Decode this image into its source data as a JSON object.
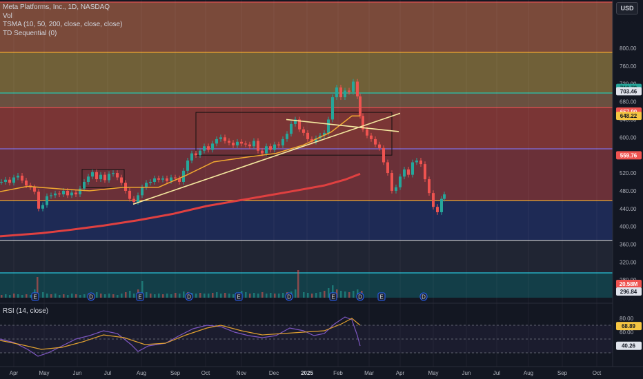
{
  "legend": {
    "symbol": "Meta Platforms, Inc., 1D, NASDAQ",
    "volume": "Vol",
    "tsma": "TSMA (10, 50, 200, close, close, close)",
    "td": "TD Sequential (0)"
  },
  "rsi_title": "RSI (14, close)",
  "currency_button": "USD",
  "colors": {
    "background": "#131722",
    "grid": "#1f2430",
    "candle_up": "#26a69a",
    "candle_down": "#ef5350",
    "sma10": "#26a69a",
    "sma50": "#f0a830",
    "sma200": "#e04040",
    "trendline": "#f5e9a0",
    "rsi": "#7e57c2",
    "rsi_ma": "#e0a030"
  },
  "price_axis": [
    "800.00",
    "760.00",
    "720.00",
    "680.00",
    "640.00",
    "600.00",
    "560.00",
    "520.00",
    "480.00",
    "440.00",
    "400.00",
    "360.00",
    "320.00",
    "280.00"
  ],
  "price_badges": [
    {
      "text": "710.79",
      "kind": "green"
    },
    {
      "text": "703.46",
      "kind": "white"
    },
    {
      "text": "657.90",
      "kind": "red"
    },
    {
      "text": "648.22",
      "kind": "yellow"
    },
    {
      "text": "559.76",
      "kind": "red"
    },
    {
      "text": "20.58M",
      "kind": "red"
    },
    {
      "text": "296.84",
      "kind": "white"
    }
  ],
  "rsi_axis": [
    "80.00",
    "60.00"
  ],
  "rsi_badges": [
    {
      "text": "68.89",
      "kind": "yellow"
    },
    {
      "text": "40.26",
      "kind": "white"
    }
  ],
  "time_axis": [
    "Apr",
    "May",
    "Jun",
    "Jul",
    "Aug",
    "Sep",
    "Oct",
    "Nov",
    "Dec",
    "2025",
    "Feb",
    "Mar",
    "Apr",
    "May",
    "Jun",
    "Jul",
    "Aug",
    "Sep",
    "Oct"
  ],
  "event_markers": [
    "E",
    "D",
    "E",
    "D",
    "E",
    "D",
    "E",
    "D",
    "E",
    "D"
  ],
  "zones": [
    {
      "top": 3,
      "bottom": 76,
      "color": "#7a4a3a",
      "line": "#e05050"
    },
    {
      "top": 76,
      "bottom": 135,
      "color": "#706038",
      "line": "#f0a830"
    },
    {
      "top": 135,
      "bottom": 156,
      "color": "#6a5040",
      "line": "#26c6b0"
    },
    {
      "top": 156,
      "bottom": 216,
      "color": "#7a3535",
      "line": "#e05050"
    },
    {
      "top": 216,
      "bottom": 291,
      "color": "#6a3038",
      "line": "#7e6ee0"
    },
    {
      "top": 291,
      "bottom": 349,
      "color": "#1e2a55",
      "line": "#f0a830"
    },
    {
      "top": 349,
      "bottom": 396,
      "color": "#202533",
      "line": "#c0c0c0"
    },
    {
      "top": 396,
      "bottom": 432,
      "color": "#133e48",
      "line": "#26c6da"
    }
  ],
  "chart_data": {
    "type": "candlestick",
    "y_range": [
      268,
      868
    ],
    "rsi_range": [
      20,
      90
    ],
    "rsi_levels": [
      70,
      50,
      30
    ],
    "sma200": [
      [
        0,
        378
      ],
      [
        60,
        385
      ],
      [
        100,
        392
      ],
      [
        150,
        402
      ],
      [
        200,
        414
      ],
      [
        250,
        428
      ],
      [
        300,
        446
      ],
      [
        360,
        462
      ],
      [
        420,
        478
      ],
      [
        470,
        492
      ],
      [
        500,
        505
      ],
      [
        522,
        518
      ]
    ],
    "sma50": [
      [
        0,
        478
      ],
      [
        40,
        490
      ],
      [
        90,
        484
      ],
      [
        130,
        480
      ],
      [
        180,
        488
      ],
      [
        230,
        488
      ],
      [
        270,
        515
      ],
      [
        310,
        545
      ],
      [
        360,
        556
      ],
      [
        400,
        564
      ],
      [
        440,
        583
      ],
      [
        480,
        612
      ],
      [
        510,
        648
      ],
      [
        522,
        648
      ]
    ],
    "trendlines": [
      {
        "x1": 193,
        "y1": 450,
        "x2": 580,
        "y2": 654
      },
      {
        "x1": 415,
        "y1": 640,
        "x2": 578,
        "y2": 613
      }
    ],
    "rectangles": [
      {
        "x1": 119,
        "y1": 528,
        "x2": 180,
        "y2": 487
      },
      {
        "x1": 284,
        "y1": 656,
        "x2": 568,
        "y2": 560
      }
    ],
    "closes": [
      [
        0,
        500
      ],
      [
        6,
        505
      ],
      [
        12,
        498
      ],
      [
        18,
        510
      ],
      [
        24,
        514
      ],
      [
        30,
        503
      ],
      [
        36,
        492
      ],
      [
        42,
        488
      ],
      [
        48,
        478
      ],
      [
        54,
        440
      ],
      [
        60,
        448
      ],
      [
        66,
        468
      ],
      [
        72,
        470
      ],
      [
        78,
        474
      ],
      [
        84,
        472
      ],
      [
        90,
        480
      ],
      [
        96,
        470
      ],
      [
        102,
        476
      ],
      [
        108,
        472
      ],
      [
        114,
        485
      ],
      [
        120,
        500
      ],
      [
        126,
        512
      ],
      [
        132,
        522
      ],
      [
        138,
        506
      ],
      [
        144,
        516
      ],
      [
        150,
        504
      ],
      [
        156,
        518
      ],
      [
        162,
        520
      ],
      [
        168,
        510
      ],
      [
        174,
        498
      ],
      [
        180,
        480
      ],
      [
        186,
        462
      ],
      [
        192,
        455
      ],
      [
        198,
        470
      ],
      [
        204,
        488
      ],
      [
        210,
        498
      ],
      [
        216,
        500
      ],
      [
        222,
        508
      ],
      [
        228,
        505
      ],
      [
        234,
        508
      ],
      [
        240,
        502
      ],
      [
        246,
        510
      ],
      [
        252,
        508
      ],
      [
        258,
        500
      ],
      [
        264,
        525
      ],
      [
        270,
        548
      ],
      [
        276,
        564
      ],
      [
        282,
        560
      ],
      [
        288,
        570
      ],
      [
        294,
        580
      ],
      [
        300,
        572
      ],
      [
        306,
        586
      ],
      [
        312,
        596
      ],
      [
        318,
        600
      ],
      [
        324,
        592
      ],
      [
        330,
        588
      ],
      [
        336,
        582
      ],
      [
        342,
        590
      ],
      [
        348,
        586
      ],
      [
        354,
        584
      ],
      [
        360,
        580
      ],
      [
        366,
        592
      ],
      [
        372,
        570
      ],
      [
        378,
        564
      ],
      [
        384,
        580
      ],
      [
        390,
        572
      ],
      [
        396,
        584
      ],
      [
        402,
        582
      ],
      [
        408,
        596
      ],
      [
        414,
        608
      ],
      [
        420,
        630
      ],
      [
        426,
        640
      ],
      [
        432,
        618
      ],
      [
        438,
        610
      ],
      [
        444,
        596
      ],
      [
        450,
        590
      ],
      [
        456,
        598
      ],
      [
        462,
        604
      ],
      [
        468,
        610
      ],
      [
        474,
        640
      ],
      [
        480,
        690
      ],
      [
        486,
        712
      ],
      [
        492,
        690
      ],
      [
        498,
        705
      ],
      [
        504,
        702
      ],
      [
        510,
        725
      ],
      [
        516,
        692
      ],
      [
        520,
        648
      ],
      [
        524,
        618
      ],
      [
        530,
        604
      ],
      [
        536,
        596
      ],
      [
        542,
        584
      ],
      [
        548,
        576
      ],
      [
        554,
        544
      ],
      [
        560,
        520
      ],
      [
        566,
        480
      ],
      [
        572,
        488
      ],
      [
        578,
        512
      ],
      [
        584,
        528
      ],
      [
        590,
        516
      ],
      [
        596,
        544
      ],
      [
        602,
        548
      ],
      [
        608,
        540
      ],
      [
        614,
        506
      ],
      [
        620,
        475
      ],
      [
        626,
        444
      ],
      [
        632,
        432
      ],
      [
        638,
        462
      ],
      [
        642,
        472
      ]
    ],
    "volumes": [
      [
        0,
        4
      ],
      [
        6,
        5
      ],
      [
        12,
        4
      ],
      [
        18,
        6
      ],
      [
        24,
        5
      ],
      [
        30,
        4
      ],
      [
        36,
        5
      ],
      [
        42,
        4
      ],
      [
        48,
        12
      ],
      [
        52,
        30
      ],
      [
        60,
        8
      ],
      [
        66,
        6
      ],
      [
        72,
        5
      ],
      [
        78,
        6
      ],
      [
        84,
        4
      ],
      [
        90,
        5
      ],
      [
        96,
        4
      ],
      [
        102,
        6
      ],
      [
        108,
        5
      ],
      [
        114,
        4
      ],
      [
        120,
        5
      ],
      [
        126,
        6
      ],
      [
        132,
        5
      ],
      [
        138,
        8
      ],
      [
        144,
        6
      ],
      [
        150,
        5
      ],
      [
        156,
        6
      ],
      [
        162,
        5
      ],
      [
        168,
        4
      ],
      [
        174,
        6
      ],
      [
        180,
        8
      ],
      [
        186,
        10
      ],
      [
        192,
        6
      ],
      [
        198,
        12
      ],
      [
        204,
        24
      ],
      [
        210,
        8
      ],
      [
        216,
        6
      ],
      [
        222,
        5
      ],
      [
        228,
        6
      ],
      [
        234,
        5
      ],
      [
        240,
        6
      ],
      [
        246,
        5
      ],
      [
        252,
        7
      ],
      [
        258,
        6
      ],
      [
        264,
        9
      ],
      [
        270,
        8
      ],
      [
        276,
        7
      ],
      [
        282,
        6
      ],
      [
        288,
        7
      ],
      [
        294,
        6
      ],
      [
        300,
        6
      ],
      [
        306,
        7
      ],
      [
        312,
        8
      ],
      [
        318,
        6
      ],
      [
        324,
        7
      ],
      [
        330,
        6
      ],
      [
        336,
        5
      ],
      [
        342,
        6
      ],
      [
        348,
        10
      ],
      [
        354,
        8
      ],
      [
        360,
        6
      ],
      [
        366,
        7
      ],
      [
        372,
        6
      ],
      [
        378,
        8
      ],
      [
        384,
        6
      ],
      [
        390,
        7
      ],
      [
        396,
        6
      ],
      [
        402,
        6
      ],
      [
        408,
        7
      ],
      [
        414,
        8
      ],
      [
        420,
        9
      ],
      [
        426,
        12
      ],
      [
        430,
        40
      ],
      [
        438,
        8
      ],
      [
        444,
        7
      ],
      [
        450,
        6
      ],
      [
        456,
        7
      ],
      [
        462,
        8
      ],
      [
        468,
        10
      ],
      [
        474,
        14
      ],
      [
        480,
        18
      ],
      [
        486,
        12
      ],
      [
        492,
        10
      ],
      [
        498,
        9
      ],
      [
        504,
        8
      ],
      [
        510,
        10
      ],
      [
        516,
        12
      ],
      [
        522,
        10
      ]
    ],
    "rsi": [
      [
        0,
        50
      ],
      [
        20,
        45
      ],
      [
        40,
        35
      ],
      [
        55,
        25
      ],
      [
        70,
        30
      ],
      [
        90,
        40
      ],
      [
        110,
        50
      ],
      [
        130,
        55
      ],
      [
        150,
        62
      ],
      [
        170,
        58
      ],
      [
        190,
        42
      ],
      [
        200,
        32
      ],
      [
        215,
        40
      ],
      [
        240,
        44
      ],
      [
        260,
        55
      ],
      [
        280,
        65
      ],
      [
        300,
        70
      ],
      [
        320,
        68
      ],
      [
        340,
        60
      ],
      [
        360,
        55
      ],
      [
        380,
        52
      ],
      [
        400,
        55
      ],
      [
        420,
        66
      ],
      [
        440,
        62
      ],
      [
        455,
        55
      ],
      [
        470,
        58
      ],
      [
        485,
        72
      ],
      [
        500,
        82
      ],
      [
        510,
        78
      ],
      [
        518,
        55
      ],
      [
        522,
        40
      ]
    ],
    "rsi_ma": [
      [
        0,
        48
      ],
      [
        30,
        42
      ],
      [
        60,
        35
      ],
      [
        90,
        38
      ],
      [
        120,
        46
      ],
      [
        150,
        56
      ],
      [
        180,
        52
      ],
      [
        210,
        42
      ],
      [
        240,
        44
      ],
      [
        270,
        56
      ],
      [
        300,
        66
      ],
      [
        320,
        70
      ],
      [
        350,
        62
      ],
      [
        380,
        56
      ],
      [
        410,
        58
      ],
      [
        440,
        60
      ],
      [
        470,
        62
      ],
      [
        495,
        72
      ],
      [
        510,
        80
      ],
      [
        522,
        70
      ]
    ]
  }
}
